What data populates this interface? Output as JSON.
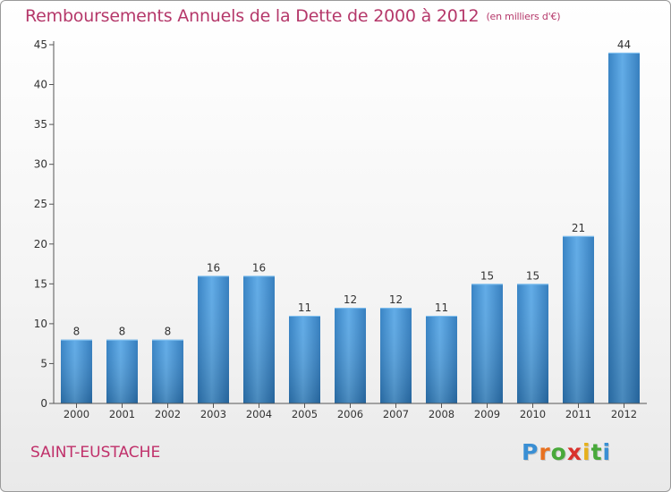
{
  "title": "Remboursements Annuels de la Dette de 2000 à 2012",
  "unit_label": "(en milliers d'€)",
  "commune": "SAINT-EUSTACHE",
  "logo": {
    "letters": [
      "P",
      "r",
      "o",
      "x",
      "i",
      "t",
      "i"
    ],
    "colors": [
      "#3a8fd4",
      "#e8711f",
      "#48a93a",
      "#d9322c",
      "#e6b01c",
      "#48a93a",
      "#3a8fd4"
    ]
  },
  "colors": {
    "bar": "#3d94d8",
    "axis": "#555555",
    "grid": "#dddddd",
    "title": "#b5386a"
  },
  "chart_data": {
    "type": "bar",
    "categories": [
      "2000",
      "2001",
      "2002",
      "2003",
      "2004",
      "2005",
      "2006",
      "2007",
      "2008",
      "2009",
      "2010",
      "2011",
      "2012"
    ],
    "values": [
      8,
      8,
      8,
      16,
      16,
      11,
      12,
      12,
      11,
      15,
      15,
      21,
      44
    ],
    "ylim": [
      0,
      45
    ],
    "yticks": [
      0,
      5,
      10,
      15,
      20,
      25,
      30,
      35,
      40,
      45
    ],
    "grid": false,
    "data_labels": true
  }
}
